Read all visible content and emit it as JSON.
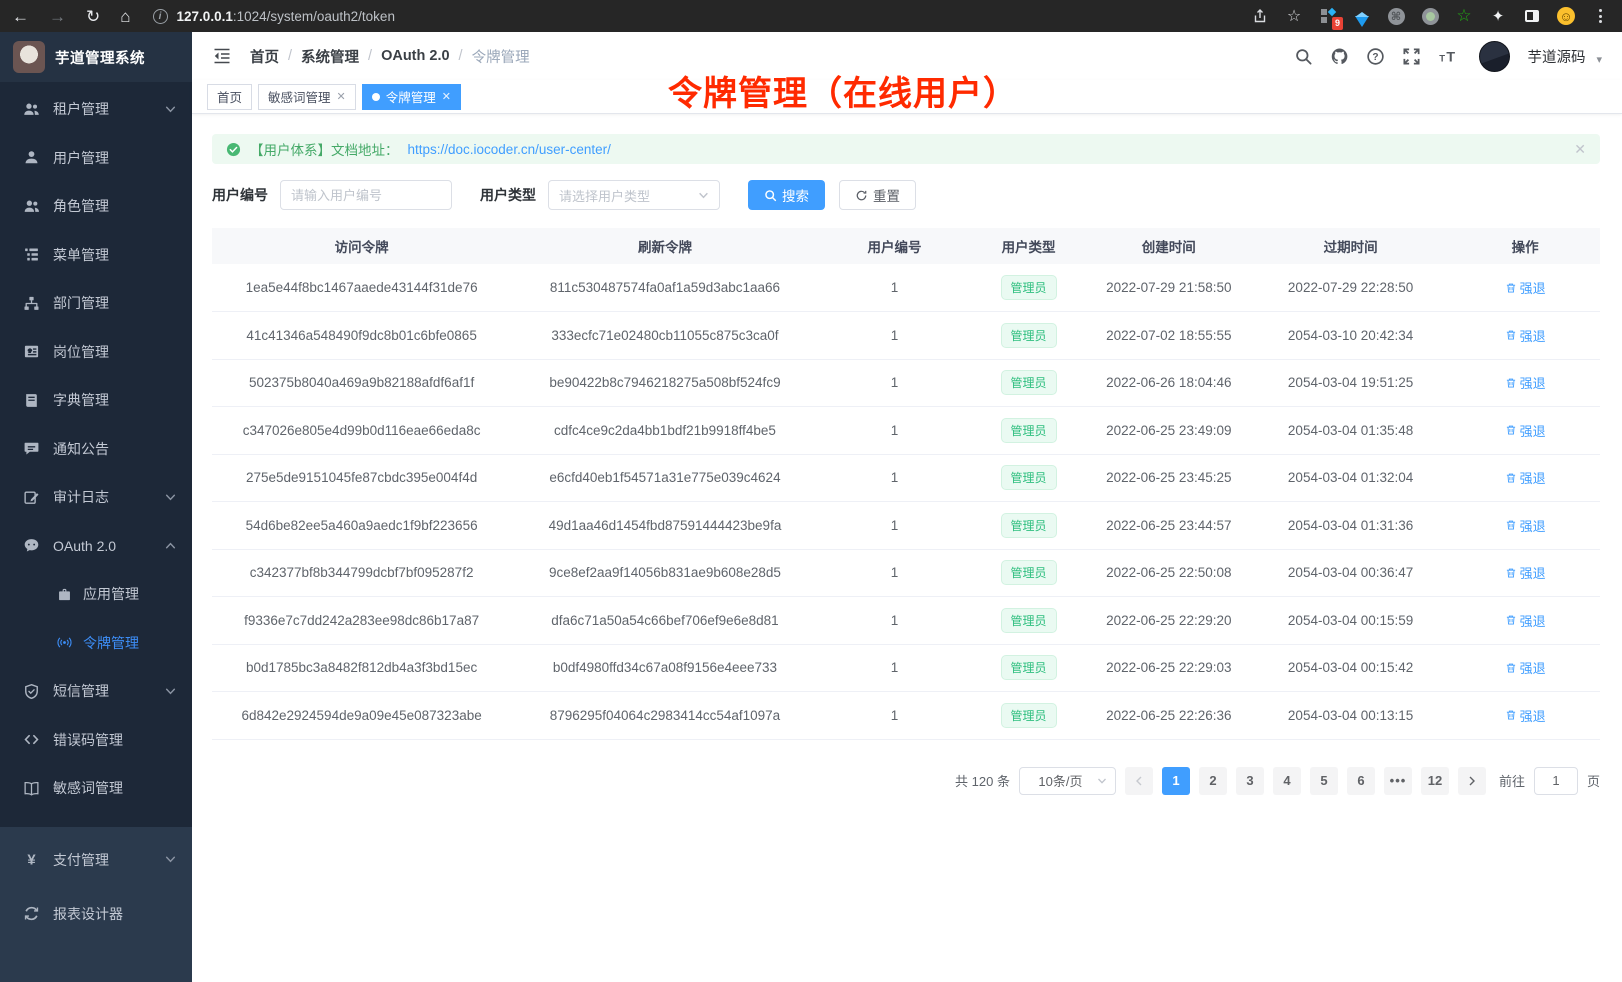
{
  "browser": {
    "url_host": "127.0.0.1",
    "url_rest": ":1024/system/oauth2/token",
    "extension_badge": "9",
    "left_icons": [
      "back-icon",
      "forward-icon",
      "refresh-icon",
      "home-icon"
    ],
    "right_icons": [
      "share-icon",
      "bookmark-star-icon",
      "extensions-badge-icon",
      "gem-extension-icon",
      "command-extension-icon",
      "recorder-extension-icon",
      "green-star-extension-icon",
      "puzzle-extension-icon",
      "side-panel-icon",
      "profile-avatar-icon",
      "kebab-menu-icon"
    ]
  },
  "app": {
    "title": "芋道管理系统"
  },
  "sidebar": {
    "items": [
      {
        "label": "租户管理",
        "icon": "tenant-users-icon",
        "chevron": "down"
      },
      {
        "label": "用户管理",
        "icon": "user-icon"
      },
      {
        "label": "角色管理",
        "icon": "roles-icon"
      },
      {
        "label": "菜单管理",
        "icon": "menu-tree-icon"
      },
      {
        "label": "部门管理",
        "icon": "dept-icon"
      },
      {
        "label": "岗位管理",
        "icon": "post-icon"
      },
      {
        "label": "字典管理",
        "icon": "dict-icon"
      },
      {
        "label": "通知公告",
        "icon": "notice-icon"
      },
      {
        "label": "审计日志",
        "icon": "audit-log-icon",
        "chevron": "down"
      },
      {
        "label": "OAuth 2.0",
        "icon": "oauth-icon",
        "chevron": "up"
      },
      {
        "label": "应用管理",
        "icon": "app-icon",
        "child": true
      },
      {
        "label": "令牌管理",
        "icon": "token-icon",
        "child": true,
        "active": true
      },
      {
        "label": "短信管理",
        "icon": "sms-shield-icon",
        "chevron": "down"
      },
      {
        "label": "错误码管理",
        "icon": "errcode-icon"
      },
      {
        "label": "敏感词管理",
        "icon": "sensitive-book-icon"
      }
    ],
    "bottom_items": [
      {
        "label": "支付管理",
        "icon": "pay-icon",
        "chevron": "down"
      },
      {
        "label": "报表设计器",
        "icon": "report-icon"
      }
    ]
  },
  "header": {
    "breadcrumb": [
      "首页",
      "系统管理",
      "OAuth 2.0",
      "令牌管理"
    ],
    "action_icons": [
      "search-icon",
      "github-icon",
      "help-icon",
      "fullscreen-icon",
      "font-size-icon"
    ],
    "user_name": "芋道源码"
  },
  "tags": [
    {
      "label": "首页",
      "active": false,
      "closable": false
    },
    {
      "label": "敏感词管理",
      "active": false,
      "closable": true
    },
    {
      "label": "令牌管理",
      "active": true,
      "closable": true
    }
  ],
  "annotation": "令牌管理（在线用户）",
  "alert": {
    "prefix": "【用户体系】文档地址：",
    "link": "https://doc.iocoder.cn/user-center/"
  },
  "filters": {
    "user_id_label": "用户编号",
    "user_id_placeholder": "请输入用户编号",
    "user_type_label": "用户类型",
    "user_type_placeholder": "请选择用户类型",
    "search_label": "搜索",
    "reset_label": "重置"
  },
  "table": {
    "columns": [
      "访问令牌",
      "刷新令牌",
      "用户编号",
      "用户类型",
      "创建时间",
      "过期时间",
      "操作"
    ],
    "action_label": "强退",
    "rows": [
      {
        "access_token": "1ea5e44f8bc1467aaede43144f31de76",
        "refresh_token": "811c530487574fa0af1a59d3abc1aa66",
        "user_id": "1",
        "user_type": "管理员",
        "created_at": "2022-07-29 21:58:50",
        "expires_at": "2022-07-29 22:28:50"
      },
      {
        "access_token": "41c41346a548490f9dc8b01c6bfe0865",
        "refresh_token": "333ecfc71e02480cb11055c875c3ca0f",
        "user_id": "1",
        "user_type": "管理员",
        "created_at": "2022-07-02 18:55:55",
        "expires_at": "2054-03-10 20:42:34"
      },
      {
        "access_token": "502375b8040a469a9b82188afdf6af1f",
        "refresh_token": "be90422b8c7946218275a508bf524fc9",
        "user_id": "1",
        "user_type": "管理员",
        "created_at": "2022-06-26 18:04:46",
        "expires_at": "2054-03-04 19:51:25"
      },
      {
        "access_token": "c347026e805e4d99b0d116eae66eda8c",
        "refresh_token": "cdfc4ce9c2da4bb1bdf21b9918ff4be5",
        "user_id": "1",
        "user_type": "管理员",
        "created_at": "2022-06-25 23:49:09",
        "expires_at": "2054-03-04 01:35:48"
      },
      {
        "access_token": "275e5de9151045fe87cbdc395e004f4d",
        "refresh_token": "e6cfd40eb1f54571a31e775e039c4624",
        "user_id": "1",
        "user_type": "管理员",
        "created_at": "2022-06-25 23:45:25",
        "expires_at": "2054-03-04 01:32:04"
      },
      {
        "access_token": "54d6be82ee5a460a9aedc1f9bf223656",
        "refresh_token": "49d1aa46d1454fbd87591444423be9fa",
        "user_id": "1",
        "user_type": "管理员",
        "created_at": "2022-06-25 23:44:57",
        "expires_at": "2054-03-04 01:31:36"
      },
      {
        "access_token": "c342377bf8b344799dcbf7bf095287f2",
        "refresh_token": "9ce8ef2aa9f14056b831ae9b608e28d5",
        "user_id": "1",
        "user_type": "管理员",
        "created_at": "2022-06-25 22:50:08",
        "expires_at": "2054-03-04 00:36:47"
      },
      {
        "access_token": "f9336e7c7dd242a283ee98dc86b17a87",
        "refresh_token": "dfa6c71a50a54c66bef706ef9e6e8d81",
        "user_id": "1",
        "user_type": "管理员",
        "created_at": "2022-06-25 22:29:20",
        "expires_at": "2054-03-04 00:15:59"
      },
      {
        "access_token": "b0d1785bc3a8482f812db4a3f3bd15ec",
        "refresh_token": "b0df4980ffd34c67a08f9156e4eee733",
        "user_id": "1",
        "user_type": "管理员",
        "created_at": "2022-06-25 22:29:03",
        "expires_at": "2054-03-04 00:15:42"
      },
      {
        "access_token": "6d842e2924594de9a09e45e087323abe",
        "refresh_token": "8796295f04064c2983414cc54af1097a",
        "user_id": "1",
        "user_type": "管理员",
        "created_at": "2022-06-25 22:26:36",
        "expires_at": "2054-03-04 00:13:15"
      }
    ]
  },
  "pagination": {
    "total_text": "共 120 条",
    "page_size": "10条/页",
    "pages": [
      "1",
      "2",
      "3",
      "4",
      "5",
      "6",
      "...",
      "12"
    ],
    "active_page": "1",
    "goto_label": "前往",
    "goto_value": "1",
    "page_suffix": "页"
  },
  "colors": {
    "accent_blue": "#409eff",
    "sidebar_bg": "#1d2838",
    "active_menu": "#3d8ef7",
    "success_green": "#2fbf7f",
    "annotation_red": "#ff2a00"
  }
}
